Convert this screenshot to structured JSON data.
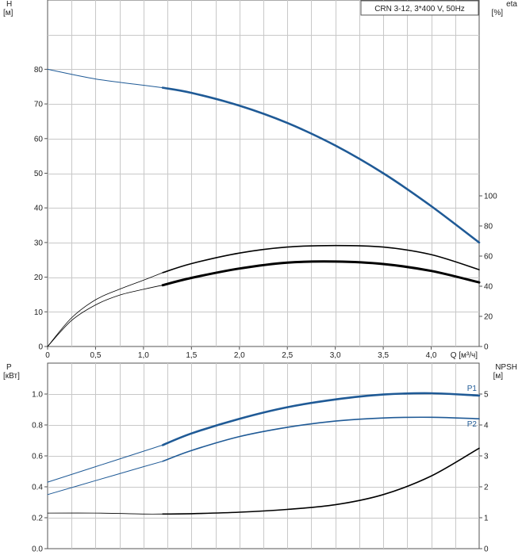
{
  "chart_data": [
    {
      "type": "line",
      "title": "CRN 3-12, 3*400 V, 50Hz",
      "xlabel": "Q [м³/ч]",
      "xlim": [
        0,
        4.5
      ],
      "x_ticks": [
        "0",
        "0,5",
        "1,0",
        "1,5",
        "2,0",
        "2,5",
        "3,0",
        "3,5",
        "4,0"
      ],
      "x_tick_values": [
        0,
        0.5,
        1.0,
        1.5,
        2.0,
        2.5,
        3.0,
        3.5,
        4.0
      ],
      "y_left": {
        "label": "H",
        "unit": "[м]",
        "lim": [
          0,
          100
        ],
        "ticks": [
          0,
          10,
          20,
          30,
          40,
          50,
          60,
          70,
          80
        ]
      },
      "y_right": {
        "label": "eta",
        "unit": "[%]",
        "lim": [
          0,
          230
        ],
        "ticks": [
          0,
          20,
          40,
          60,
          80,
          100
        ]
      },
      "grid": true,
      "series": [
        {
          "axis": "left",
          "color": "#1f5a96",
          "x": [
            0,
            0.5,
            1.0,
            1.2
          ],
          "y": [
            80,
            77.2,
            75.4,
            74.7
          ]
        },
        {
          "axis": "left",
          "color": "#1f5a96",
          "x": [
            1.2,
            1.5,
            2.0,
            2.5,
            3.0,
            3.5,
            4.0,
            4.5
          ],
          "y": [
            74.7,
            73.2,
            69.5,
            64.5,
            58.0,
            50.0,
            40.5,
            30.0
          ]
        },
        {
          "axis": "right",
          "color": "#000000",
          "x": [
            0,
            0.25,
            0.5,
            0.75,
            1.0,
            1.2
          ],
          "y": [
            0,
            19,
            31,
            38,
            44,
            49
          ]
        },
        {
          "axis": "right",
          "color": "#000000",
          "x": [
            1.2,
            1.5,
            2.0,
            2.5,
            3.0,
            3.5,
            4.0,
            4.5
          ],
          "y": [
            49,
            55,
            62,
            66,
            67,
            66,
            61,
            51
          ]
        },
        {
          "axis": "left",
          "color": "#000000",
          "x": [
            0,
            0.25,
            0.5,
            0.75,
            1.0,
            1.2
          ],
          "y": [
            0,
            7.5,
            12,
            14.8,
            16.5,
            17.7
          ]
        },
        {
          "axis": "left",
          "color": "#000000",
          "x": [
            1.2,
            1.5,
            2.0,
            2.5,
            3.0,
            3.5,
            4.0,
            4.5
          ],
          "y": [
            17.7,
            19.8,
            22.5,
            24.2,
            24.5,
            23.8,
            21.8,
            18.5
          ]
        }
      ]
    },
    {
      "type": "line",
      "xlim": [
        0,
        4.5
      ],
      "y_left": {
        "label": "P",
        "unit": "[кВт]",
        "lim": [
          0,
          1.2
        ],
        "ticks": [
          "0.0",
          "0.2",
          "0.4",
          "0.6",
          "0.8",
          "1.0"
        ],
        "tick_values": [
          0,
          0.2,
          0.4,
          0.6,
          0.8,
          1.0
        ]
      },
      "y_right": {
        "label": "NPSH",
        "unit": "[м]",
        "lim": [
          0,
          6
        ],
        "ticks": [
          0,
          1,
          2,
          3,
          4,
          5
        ]
      },
      "grid": true,
      "series": [
        {
          "name": "P1",
          "axis": "left",
          "color": "#1f5a96",
          "x": [
            0,
            0.5,
            1.0,
            1.2
          ],
          "y": [
            0.43,
            0.53,
            0.63,
            0.67
          ]
        },
        {
          "name": "P1",
          "axis": "left",
          "color": "#1f5a96",
          "x": [
            1.2,
            1.5,
            2.0,
            2.5,
            3.0,
            3.5,
            4.0,
            4.5
          ],
          "y": [
            0.67,
            0.745,
            0.84,
            0.915,
            0.965,
            0.997,
            1.005,
            0.99
          ]
        },
        {
          "name": "P2",
          "axis": "left",
          "color": "#1f5a96",
          "x": [
            0,
            0.5,
            1.0,
            1.2
          ],
          "y": [
            0.35,
            0.44,
            0.53,
            0.565
          ]
        },
        {
          "name": "P2",
          "axis": "left",
          "color": "#1f5a96",
          "x": [
            1.2,
            1.5,
            2.0,
            2.5,
            3.0,
            3.5,
            4.0,
            4.5
          ],
          "y": [
            0.565,
            0.635,
            0.725,
            0.785,
            0.825,
            0.845,
            0.85,
            0.84
          ]
        },
        {
          "axis": "right",
          "color": "#000000",
          "x": [
            0,
            0.5,
            1.0,
            1.2
          ],
          "y": [
            1.15,
            1.15,
            1.12,
            1.12
          ]
        },
        {
          "axis": "right",
          "color": "#000000",
          "x": [
            1.2,
            1.5,
            2.0,
            2.5,
            3.0,
            3.5,
            4.0,
            4.5
          ],
          "y": [
            1.12,
            1.13,
            1.18,
            1.27,
            1.42,
            1.75,
            2.35,
            3.25
          ]
        }
      ]
    }
  ]
}
